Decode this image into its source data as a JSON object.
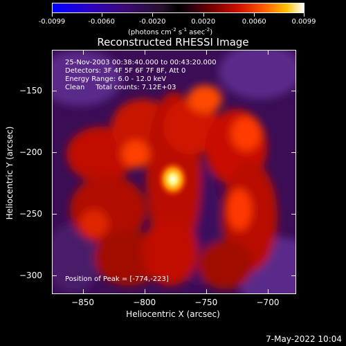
{
  "colorbar": {
    "tick_labels": [
      "-0.0099",
      "-0.0060",
      "-0.0020",
      "0.0020",
      "0.0060",
      "0.0099"
    ],
    "tick_values": [
      -0.0099,
      -0.006,
      -0.002,
      0.002,
      0.006,
      0.0099
    ],
    "units_text": "(photons cm",
    "units_parts": [
      "(photons cm",
      "-2",
      " s",
      "-1",
      " asec",
      "-2",
      ")"
    ],
    "colors": [
      "#0000ff",
      "#2b00c8",
      "#3c0a78",
      "#000000",
      "#7a0000",
      "#d01000",
      "#ff5a00",
      "#ffc000",
      "#ffffff"
    ]
  },
  "title": "Reconstructed RHESSI Image",
  "info": {
    "time_range": "25-Nov-2003 00:38:40.000 to 00:43:20.000",
    "detectors": "Detectors: 3F 4F 5F 6F 7F 8F, Att 0",
    "energy_range": "Energy Range: 6.0 - 12.0 keV",
    "clean_counts": "Clean     Total counts: 7.12E+03"
  },
  "peak": {
    "text": "Position of Peak = [-774,-223]",
    "x": -774,
    "y": -223
  },
  "axes": {
    "x_title": "Heliocentric X (arcsec)",
    "y_title": "Heliocentric Y (arcsec)",
    "x_range": [
      -875,
      -677
    ],
    "y_range": [
      -315,
      -117
    ],
    "x_ticks": [
      -850,
      -800,
      -750,
      -700
    ],
    "y_ticks": [
      -150,
      -200,
      -250,
      -300
    ],
    "x_tick_labels": [
      "−850",
      "−800",
      "−750",
      "−700"
    ],
    "y_tick_labels": [
      "−150",
      "−200",
      "−250",
      "−300"
    ]
  },
  "timestamp": "7-May-2022 10:04"
}
